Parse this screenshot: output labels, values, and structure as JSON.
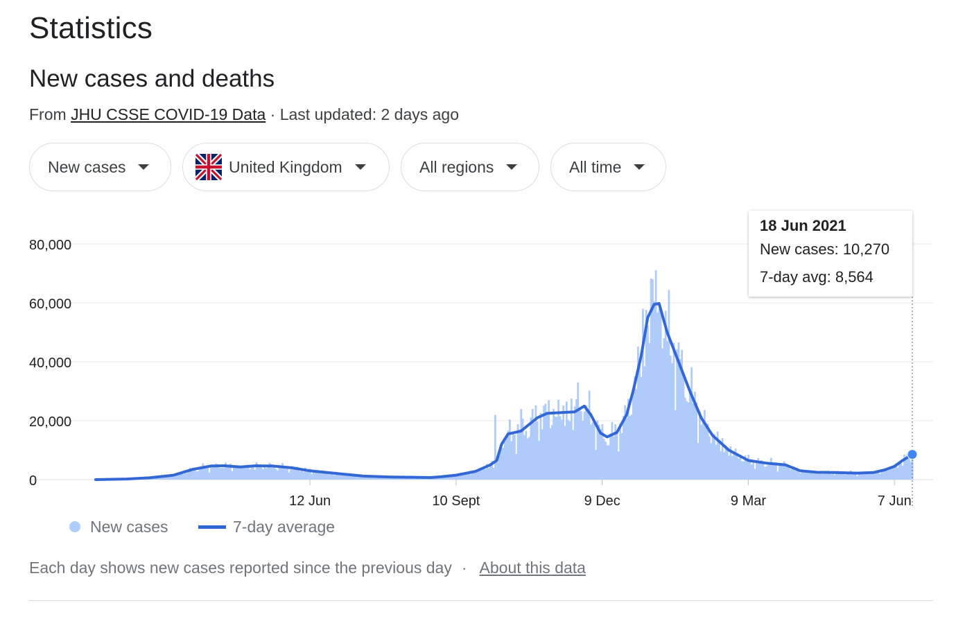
{
  "header": {
    "title": "Statistics",
    "subtitle": "New cases and deaths",
    "source_prefix": "From",
    "source_link": "JHU CSSE COVID-19 Data",
    "updated": "· Last updated: 2 days ago"
  },
  "filters": [
    {
      "label": "New cases"
    },
    {
      "label": "United Kingdom",
      "icon": "uk-flag-icon"
    },
    {
      "label": "All regions"
    },
    {
      "label": "All time"
    }
  ],
  "tooltip": {
    "date": "18 Jun 2021",
    "new_cases": "New cases: 10,270",
    "avg": "7-day avg: 8,564"
  },
  "legend": {
    "new_cases": "New cases",
    "average": "7-day average"
  },
  "footer": {
    "note": "Each day shows new cases reported since the previous day",
    "separator": "·",
    "link": "About this data"
  },
  "colors": {
    "bars": "#aecbfa",
    "line": "#3367d6",
    "grid": "#e8eaed",
    "axis_text": "#202124"
  },
  "chart_data": {
    "type": "bar",
    "title": "",
    "xlabel": "",
    "ylabel": "",
    "ylim": [
      0,
      80000
    ],
    "grid": true,
    "legend_position": "bottom-left",
    "y_ticks": [
      {
        "value": 0,
        "label": "0"
      },
      {
        "value": 20000,
        "label": "20,000"
      },
      {
        "value": 40000,
        "label": "40,000"
      },
      {
        "value": 60000,
        "label": "60,000"
      },
      {
        "value": 80000,
        "label": "80,000"
      }
    ],
    "x_range": [
      "2020-02-01",
      "2021-06-18"
    ],
    "x_ticks": [
      {
        "date": "2020-06-12",
        "label": "12 Jun"
      },
      {
        "date": "2020-09-10",
        "label": "10 Sept"
      },
      {
        "date": "2020-12-09",
        "label": "9 Dec"
      },
      {
        "date": "2021-03-09",
        "label": "9 Mar"
      },
      {
        "date": "2021-06-07",
        "label": "7 Jun"
      }
    ],
    "highlight": {
      "date": "2021-06-18",
      "new_cases": 10270,
      "avg": 8564
    },
    "series": [
      {
        "name": "7-day average",
        "kind": "line",
        "points": [
          [
            "2020-02-01",
            0
          ],
          [
            "2020-02-20",
            200
          ],
          [
            "2020-03-05",
            600
          ],
          [
            "2020-03-20",
            1500
          ],
          [
            "2020-04-01",
            3500
          ],
          [
            "2020-04-12",
            4600
          ],
          [
            "2020-04-20",
            4700
          ],
          [
            "2020-04-30",
            4300
          ],
          [
            "2020-05-10",
            4700
          ],
          [
            "2020-05-20",
            4600
          ],
          [
            "2020-06-01",
            4000
          ],
          [
            "2020-06-12",
            3000
          ],
          [
            "2020-06-30",
            2000
          ],
          [
            "2020-07-15",
            1200
          ],
          [
            "2020-08-01",
            900
          ],
          [
            "2020-08-15",
            800
          ],
          [
            "2020-08-25",
            700
          ],
          [
            "2020-09-01",
            1000
          ],
          [
            "2020-09-10",
            1500
          ],
          [
            "2020-09-22",
            2800
          ],
          [
            "2020-10-01",
            5000
          ],
          [
            "2020-10-05",
            6500
          ],
          [
            "2020-10-08",
            12000
          ],
          [
            "2020-10-12",
            15500
          ],
          [
            "2020-10-20",
            16500
          ],
          [
            "2020-10-30",
            21000
          ],
          [
            "2020-11-05",
            22500
          ],
          [
            "2020-11-15",
            22800
          ],
          [
            "2020-11-22",
            23000
          ],
          [
            "2020-11-28",
            25000
          ],
          [
            "2020-12-02",
            22000
          ],
          [
            "2020-12-08",
            15800
          ],
          [
            "2020-12-12",
            14500
          ],
          [
            "2020-12-18",
            16000
          ],
          [
            "2020-12-24",
            22000
          ],
          [
            "2020-12-28",
            30000
          ],
          [
            "2021-01-02",
            42000
          ],
          [
            "2021-01-06",
            55000
          ],
          [
            "2021-01-10",
            59500
          ],
          [
            "2021-01-13",
            59800
          ],
          [
            "2021-01-18",
            50000
          ],
          [
            "2021-01-25",
            40000
          ],
          [
            "2021-02-01",
            30000
          ],
          [
            "2021-02-08",
            21000
          ],
          [
            "2021-02-15",
            15000
          ],
          [
            "2021-02-25",
            10000
          ],
          [
            "2021-03-09",
            6500
          ],
          [
            "2021-03-20",
            5600
          ],
          [
            "2021-04-01",
            5000
          ],
          [
            "2021-04-10",
            3000
          ],
          [
            "2021-04-20",
            2500
          ],
          [
            "2021-05-01",
            2400
          ],
          [
            "2021-05-15",
            2200
          ],
          [
            "2021-05-25",
            2400
          ],
          [
            "2021-06-01",
            3300
          ],
          [
            "2021-06-07",
            4500
          ],
          [
            "2021-06-12",
            6500
          ],
          [
            "2021-06-18",
            8564
          ]
        ]
      },
      {
        "name": "New cases",
        "kind": "bar",
        "spikes": [
          [
            "2020-10-04",
            22000
          ],
          [
            "2020-10-20",
            24000
          ],
          [
            "2020-11-05",
            23000
          ],
          [
            "2020-11-24",
            33000
          ],
          [
            "2020-12-29",
            35000
          ],
          [
            "2021-01-03",
            58000
          ],
          [
            "2021-01-09",
            68000
          ],
          [
            "2021-01-13",
            58000
          ],
          [
            "2021-01-18",
            47000
          ]
        ]
      }
    ]
  }
}
